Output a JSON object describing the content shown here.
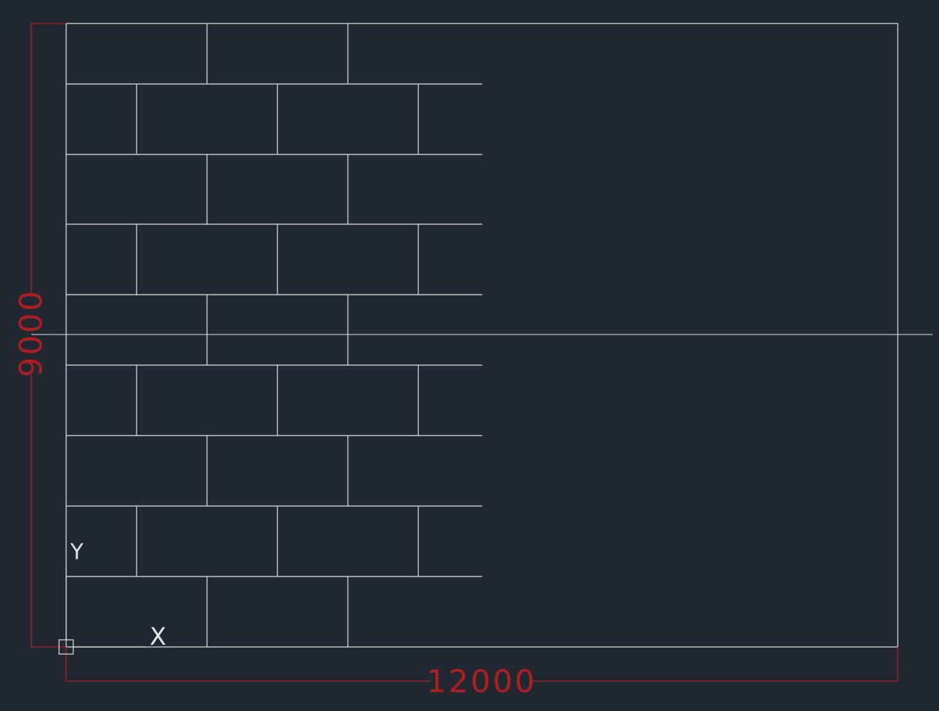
{
  "drawing": {
    "background": "#222831",
    "line_color": "#e6e6e6",
    "dimension_color": "#b01e23",
    "plan_width": 12000,
    "plan_height": 9000,
    "tile_rows": 9,
    "tile_columns_visible": 3,
    "tile_pattern": "running-bond"
  },
  "dimensions": {
    "width_label": "12000",
    "height_label": "9000"
  },
  "ucs": {
    "x_label": "X",
    "y_label": "Y"
  }
}
